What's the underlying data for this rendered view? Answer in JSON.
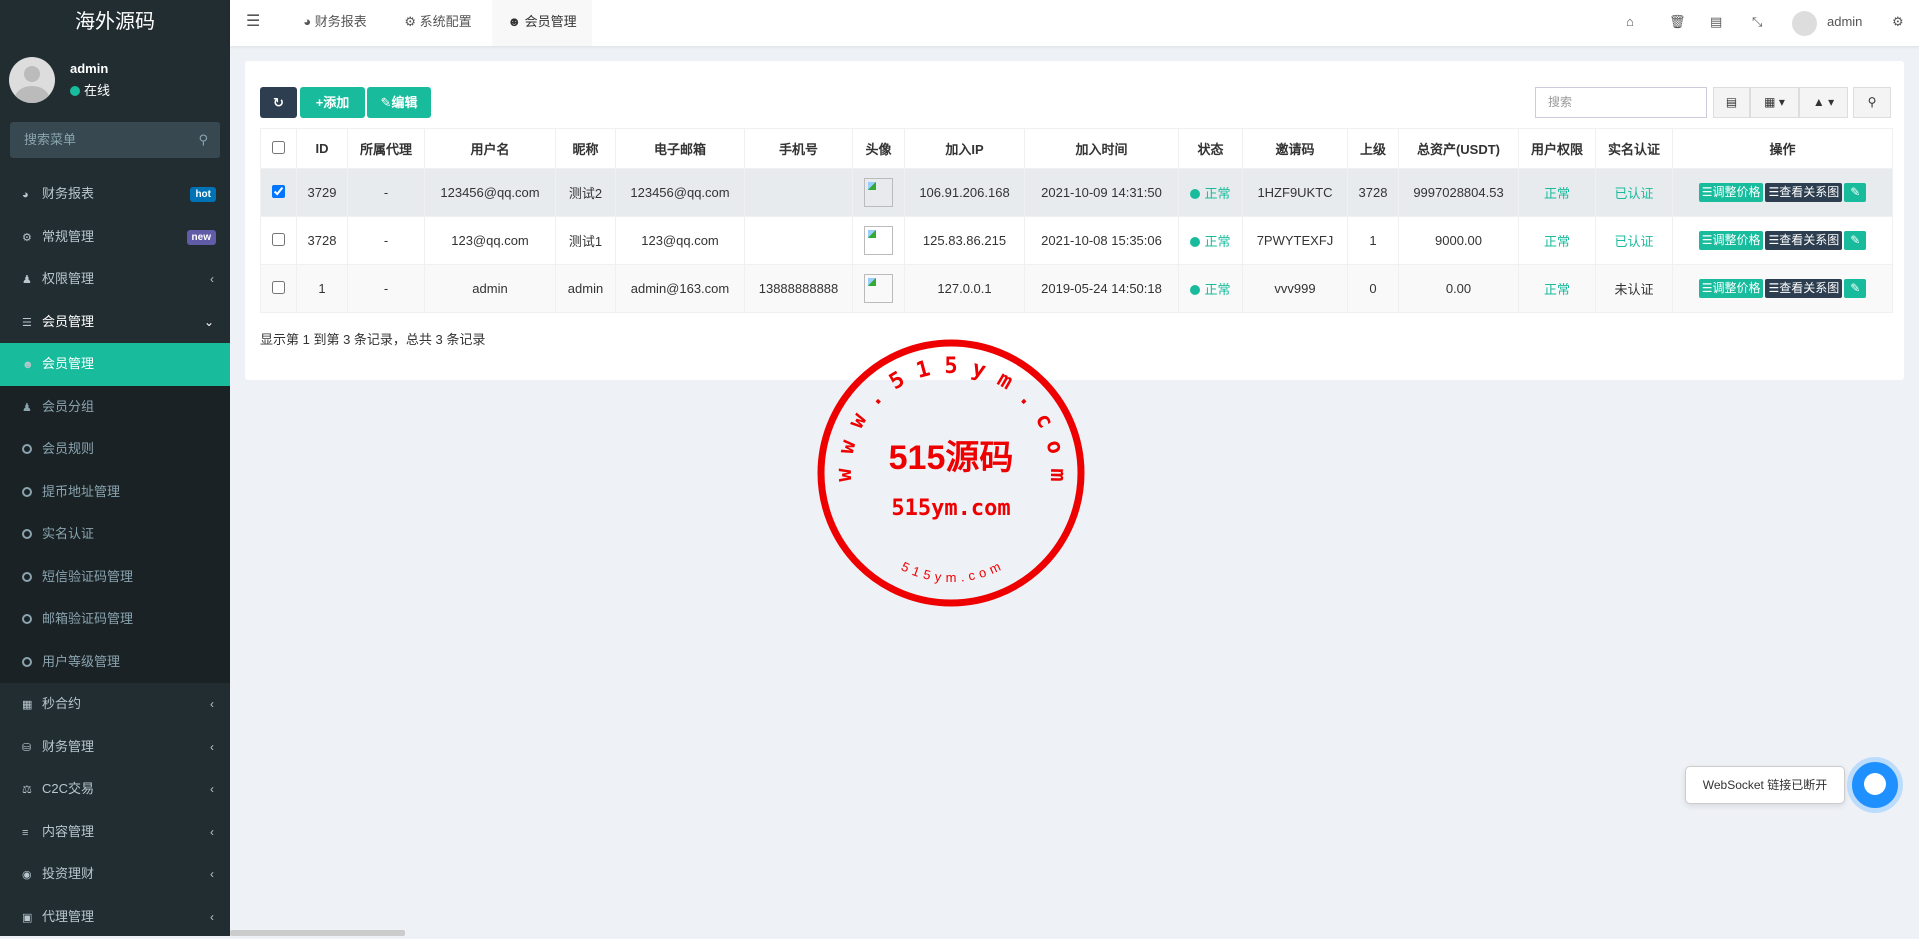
{
  "sidebar": {
    "logo": "海外源码",
    "user": {
      "name": "admin",
      "status": "在线"
    },
    "search_placeholder": "搜索菜单",
    "items": [
      {
        "label": "财务报表",
        "icon": "dashboard-icon",
        "badge": "hot",
        "badge_color": "#0073b7"
      },
      {
        "label": "常规管理",
        "icon": "cogs-icon",
        "badge": "new",
        "badge_color": "#605ca8"
      },
      {
        "label": "权限管理",
        "icon": "users-icon"
      },
      {
        "label": "会员管理",
        "icon": "list-icon",
        "open": true
      },
      {
        "label": "会员管理",
        "icon": "user-icon",
        "active": true
      },
      {
        "label": "会员分组",
        "icon": "users-icon"
      },
      {
        "label": "会员规则",
        "icon": "circle-icon"
      },
      {
        "label": "提币地址管理",
        "icon": "circle-icon"
      },
      {
        "label": "实名认证",
        "icon": "circle-icon"
      },
      {
        "label": "短信验证码管理",
        "icon": "circle-icon"
      },
      {
        "label": "邮箱验证码管理",
        "icon": "circle-icon"
      },
      {
        "label": "用户等级管理",
        "icon": "circle-icon"
      },
      {
        "label": "秒合约",
        "icon": "calendar-icon"
      },
      {
        "label": "财务管理",
        "icon": "database-icon"
      },
      {
        "label": "C2C交易",
        "icon": "balance-scale-icon"
      },
      {
        "label": "内容管理",
        "icon": "align-left-icon"
      },
      {
        "label": "投资理财",
        "icon": "compass-icon"
      },
      {
        "label": "代理管理",
        "icon": "briefcase-icon"
      }
    ]
  },
  "topbar": {
    "tabs": [
      {
        "label": "财务报表",
        "icon": "dashboard-icon"
      },
      {
        "label": "系统配置",
        "icon": "gear-icon"
      },
      {
        "label": "会员管理",
        "icon": "user-icon",
        "active": true
      }
    ],
    "user": "admin"
  },
  "toolbar": {
    "add": "添加",
    "edit": "编辑",
    "search_placeholder": "搜索"
  },
  "table": {
    "headers": [
      "ID",
      "所属代理",
      "用户名",
      "昵称",
      "电子邮箱",
      "手机号",
      "头像",
      "加入IP",
      "加入时间",
      "状态",
      "邀请码",
      "上级",
      "总资产(USDT)",
      "用户权限",
      "实名认证",
      "操作"
    ],
    "rows": [
      {
        "checked": true,
        "cells": [
          "3729",
          "-",
          "123456@qq.com",
          "测试2",
          "123456@qq.com",
          "",
          "",
          "106.91.206.168",
          "2021-10-09 14:31:50",
          "正常",
          "1HZF9UKTC",
          "3728",
          "9997028804.53",
          "正常",
          "已认证"
        ]
      },
      {
        "checked": false,
        "cells": [
          "3728",
          "-",
          "123@qq.com",
          "测试1",
          "123@qq.com",
          "",
          "",
          "125.83.86.215",
          "2021-10-08 15:35:06",
          "正常",
          "7PWYTEXFJ",
          "1",
          "9000.00",
          "正常",
          "已认证"
        ]
      },
      {
        "checked": false,
        "cells": [
          "1",
          "-",
          "admin",
          "admin",
          "admin@163.com",
          "13888888888",
          "",
          "127.0.0.1",
          "2019-05-24 14:50:18",
          "正常",
          "vvv999",
          "0",
          "0.00",
          "正常",
          "未认证"
        ]
      }
    ],
    "actions": {
      "adjust": "调整价格",
      "relation": "查看关系图"
    }
  },
  "pagination_text": "显示第 1 到第 3 条记录，总共 3 条记录",
  "websocket": {
    "message": "WebSocket 链接已断开"
  },
  "watermark": {
    "ring": "w w w . 5 1 5 y m . c o m",
    "title": "515源码",
    "sub": "515ym.com",
    "bottom": "5 1 5 y m . c o m",
    "color": "#ee0000"
  },
  "colors": {
    "primary": "#18bc9c",
    "dark": "#2c3e50",
    "sidebar": "#222d32"
  }
}
